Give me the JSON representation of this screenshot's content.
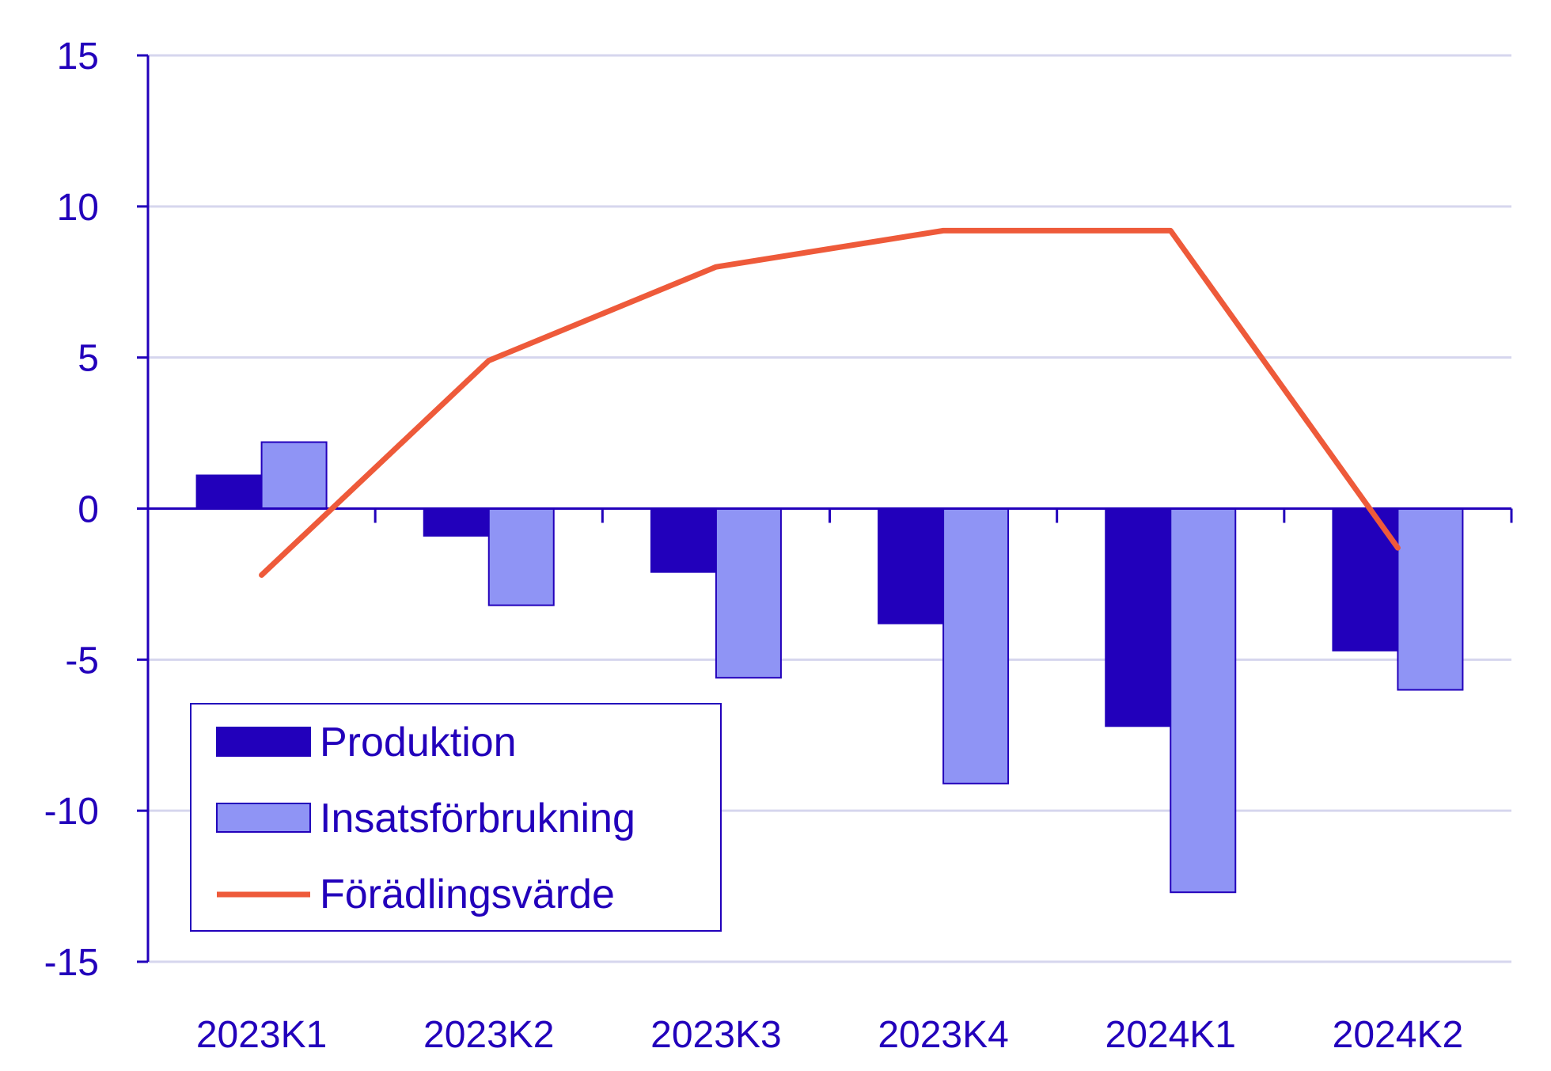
{
  "chart_data": {
    "type": "bar",
    "categories": [
      "2023K1",
      "2023K2",
      "2023K3",
      "2023K4",
      "2024K1",
      "2024K2"
    ],
    "series": [
      {
        "name": "Produktion",
        "kind": "bar",
        "color": "#2200BB",
        "values": [
          1.1,
          -0.9,
          -2.1,
          -3.8,
          -7.2,
          -4.7
        ]
      },
      {
        "name": "Insatsförbrukning",
        "kind": "bar",
        "color": "#8F94F5",
        "values": [
          2.2,
          -3.2,
          -5.6,
          -9.1,
          -12.7,
          -6.0
        ]
      },
      {
        "name": "Förädlingsvärde",
        "kind": "line",
        "color": "#EE5A3A",
        "values": [
          -2.2,
          4.9,
          8.0,
          9.2,
          9.2,
          -1.3
        ]
      }
    ],
    "yticks": [
      15,
      10,
      5,
      0,
      -5,
      -10,
      -15
    ],
    "ytick_labels": [
      "15",
      "10",
      "5",
      "0",
      "-5",
      "-10",
      "-15"
    ],
    "ylim": [
      -15,
      15
    ],
    "grid": true,
    "legend_position": "bottom-left",
    "colors": {
      "axis": "#2200BB",
      "text": "#2200BB",
      "grid": "#D6D6EE"
    }
  }
}
